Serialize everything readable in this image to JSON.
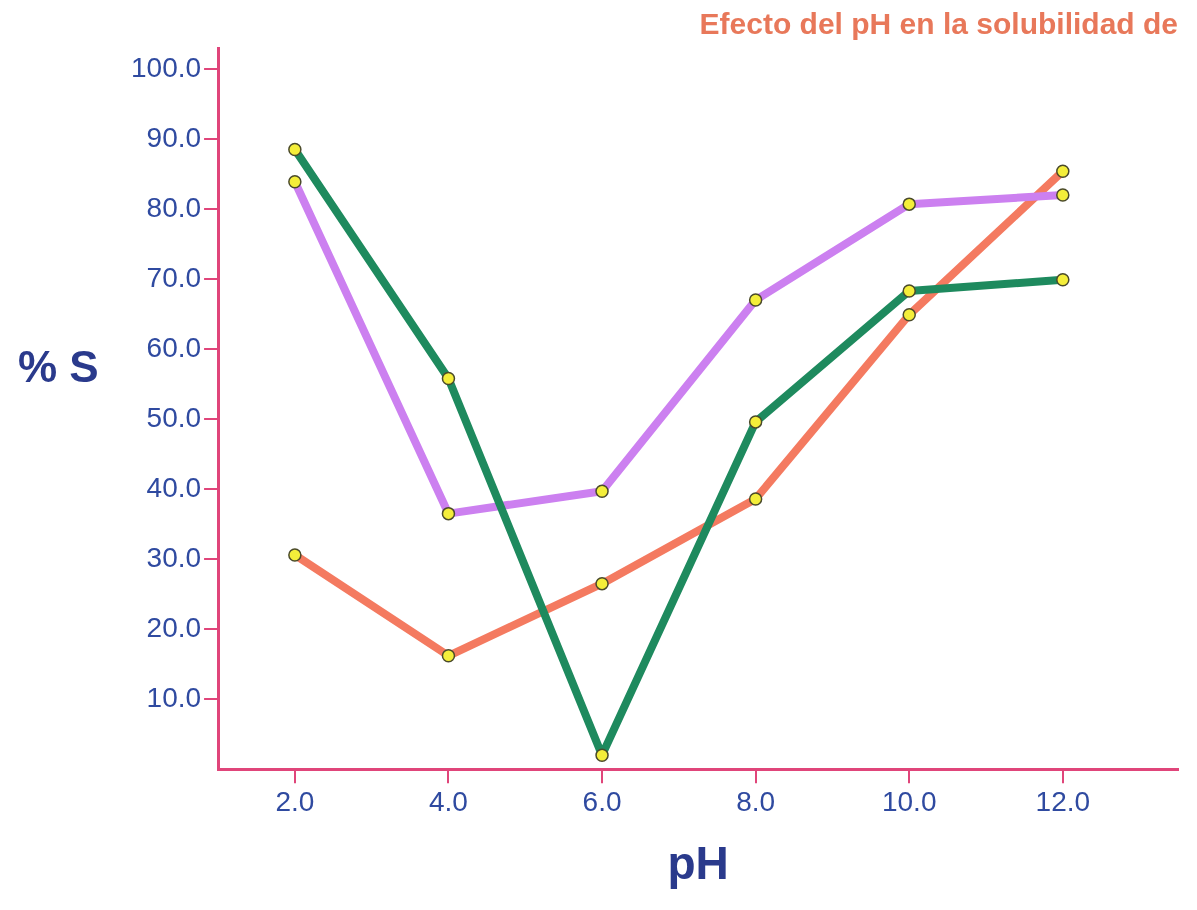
{
  "chart_data": {
    "type": "line",
    "title": "Efecto del pH en la solubilidad de",
    "xlabel": "pH",
    "ylabel": "% S",
    "x": [
      2,
      4,
      6,
      8,
      10,
      12
    ],
    "series": [
      {
        "color": "#1e8a5e",
        "values": [
          88.5,
          55.8,
          2.0,
          49.6,
          68.3,
          69.9
        ]
      },
      {
        "color": "#cc80f0",
        "values": [
          83.9,
          36.5,
          39.7,
          67.0,
          80.7,
          82.0
        ]
      },
      {
        "color": "#f47a60",
        "values": [
          30.6,
          16.2,
          26.5,
          38.6,
          64.9,
          85.4
        ]
      }
    ],
    "xlim": [
      1.0,
      13.5
    ],
    "xticks": [
      {
        "value": 2,
        "label": "2.0"
      },
      {
        "value": 4,
        "label": "4.0"
      },
      {
        "value": 6,
        "label": "6.0"
      },
      {
        "value": 8,
        "label": "8.0"
      },
      {
        "value": 10,
        "label": "10.0"
      },
      {
        "value": 12,
        "label": "12.0"
      }
    ],
    "ylim": [
      0,
      103
    ],
    "yticks": [
      {
        "value": 10,
        "label": "10.0"
      },
      {
        "value": 20,
        "label": "20.0"
      },
      {
        "value": 30,
        "label": "30.0"
      },
      {
        "value": 40,
        "label": "40.0"
      },
      {
        "value": 50,
        "label": "50.0"
      },
      {
        "value": 60,
        "label": "60.0"
      },
      {
        "value": 70,
        "label": "70.0"
      },
      {
        "value": 80,
        "label": "80.0"
      },
      {
        "value": 90,
        "label": "90.0"
      },
      {
        "value": 100,
        "label": "100.0"
      }
    ],
    "grid": false,
    "legend": false,
    "marker": "circle",
    "line_style": "solid"
  }
}
